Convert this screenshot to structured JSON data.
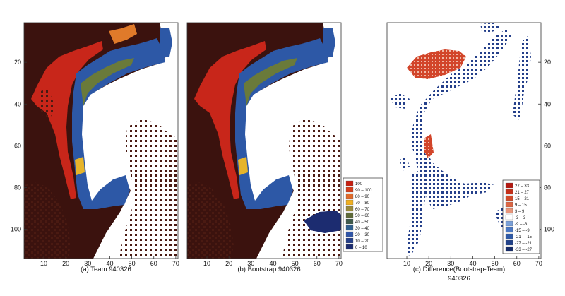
{
  "figure": {
    "panels": [
      {
        "id": "a",
        "caption": "(a) Team 940326",
        "x_ticks": [
          10,
          20,
          30,
          40,
          50,
          60,
          70
        ],
        "y_ticks": [
          20,
          40,
          60,
          80,
          100
        ],
        "y_tick_side": "left"
      },
      {
        "id": "b",
        "caption": "(b) Bootstrap 940326",
        "x_ticks": [
          10,
          20,
          30,
          40,
          50,
          60,
          70
        ],
        "y_ticks": [],
        "y_tick_side": "none"
      },
      {
        "id": "c",
        "caption_line1": "(c) Difference(Bootstrap-Team)",
        "caption_line2": "940326",
        "x_ticks": [
          10,
          20,
          30,
          40,
          50,
          60,
          70
        ],
        "y_ticks": [
          20,
          40,
          60,
          80,
          100
        ],
        "y_tick_side": "right"
      }
    ],
    "legend_concentration": [
      {
        "label": "100",
        "color": "#c81e10"
      },
      {
        "label": "90 – 100",
        "color": "#d63c1a"
      },
      {
        "label": "80 – 90",
        "color": "#e06a2a"
      },
      {
        "label": "70 – 80",
        "color": "#f0b020"
      },
      {
        "label": "60 – 70",
        "color": "#9a8a3a"
      },
      {
        "label": "50 – 60",
        "color": "#5e6a38"
      },
      {
        "label": "40 – 50",
        "color": "#3e5a4a"
      },
      {
        "label": "30 – 40",
        "color": "#2e5f8e"
      },
      {
        "label": "20 – 30",
        "color": "#2f55a8"
      },
      {
        "label": "10 – 20",
        "color": "#243f8a"
      },
      {
        "label": "0 – 10",
        "color": "#1c2c70"
      }
    ],
    "legend_difference": [
      {
        "label": "27 – 33",
        "color": "#b41810"
      },
      {
        "label": "21 – 27",
        "color": "#c42e18"
      },
      {
        "label": "15 – 21",
        "color": "#d04a2a"
      },
      {
        "label": "9 – 15",
        "color": "#dc6644"
      },
      {
        "label": "3 – 9",
        "color": "#e8957a"
      },
      {
        "label": "-3 – 3",
        "color": "#ffffff"
      },
      {
        "label": "-9 – -3",
        "color": "#7aa0d8"
      },
      {
        "label": "-15 – -9",
        "color": "#4a78c4"
      },
      {
        "label": "-21 – -15",
        "color": "#2e5aa8"
      },
      {
        "label": "-27 – -21",
        "color": "#20418a"
      },
      {
        "label": "-33 – -27",
        "color": "#162c68"
      }
    ],
    "colors": {
      "land": "#3b120e",
      "water": "#ffffff",
      "ice_high": "#c8261a",
      "ice_mid": "#e07a2a",
      "ice_low": "#2d58a6",
      "dots": "#4a1a12"
    }
  },
  "chart_data": [
    {
      "type": "heatmap",
      "title": "(a) Team 940326",
      "xlim": [
        1,
        71
      ],
      "ylim": [
        114,
        1
      ],
      "xticks": [
        10,
        20,
        30,
        40,
        50,
        60,
        70
      ],
      "yticks": [
        20,
        40,
        60,
        80,
        100
      ],
      "legend_bins": [
        "100",
        "90 – 100",
        "80 – 90",
        "70 – 80",
        "60 – 70",
        "50 – 60",
        "40 – 50",
        "30 – 40",
        "20 – 30",
        "10 – 20",
        "0 – 10"
      ]
    },
    {
      "type": "heatmap",
      "title": "(b) Bootstrap 940326",
      "xlim": [
        1,
        71
      ],
      "ylim": [
        114,
        1
      ],
      "xticks": [
        10,
        20,
        30,
        40,
        50,
        60,
        70
      ],
      "legend_bins": [
        "100",
        "90 – 100",
        "80 – 90",
        "70 – 80",
        "60 – 70",
        "50 – 60",
        "40 – 50",
        "30 – 40",
        "20 – 30",
        "10 – 20",
        "0 – 10"
      ]
    },
    {
      "type": "heatmap",
      "title": "(c) Difference(Bootstrap-Team) 940326",
      "xlim": [
        1,
        71
      ],
      "ylim": [
        114,
        1
      ],
      "xticks": [
        10,
        20,
        30,
        40,
        50,
        60,
        70
      ],
      "yticks": [
        20,
        40,
        60,
        80,
        100
      ],
      "legend_bins": [
        "27 – 33",
        "21 – 27",
        "15 – 21",
        "9 – 15",
        "3 – 9",
        "-3 – 3",
        "-9 – -3",
        "-15 – -9",
        "-21 – -15",
        "-27 – -21",
        "-33 – -27"
      ]
    }
  ]
}
